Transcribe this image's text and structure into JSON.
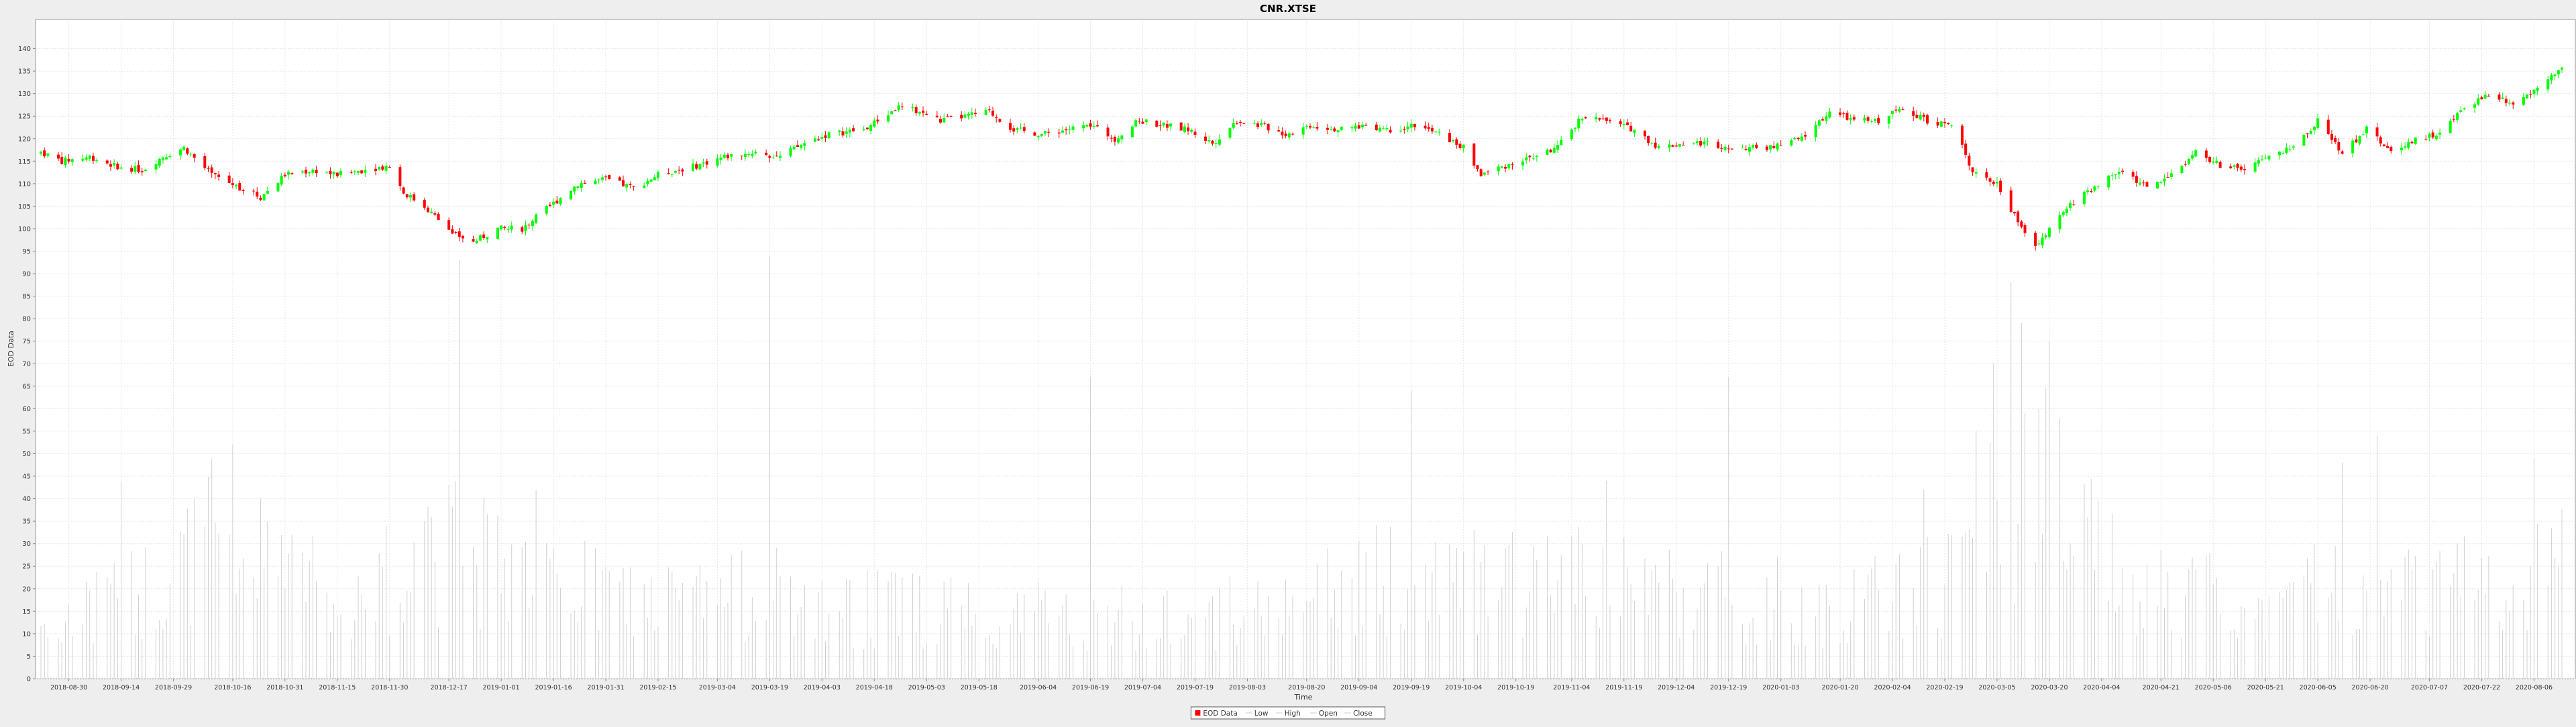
{
  "chart_data": {
    "type": "candlestick",
    "title": "CNR.XTSE",
    "xlabel": "Time",
    "ylabel": "EOD Data",
    "ylim": [
      0,
      145
    ],
    "yticks": [
      0,
      5,
      10,
      15,
      20,
      25,
      30,
      35,
      40,
      45,
      50,
      55,
      60,
      65,
      70,
      75,
      80,
      85,
      90,
      95,
      100,
      105,
      110,
      115,
      120,
      125,
      130,
      135,
      140
    ],
    "xlim": [
      "2018-08-22",
      "2020-08-14"
    ],
    "xticks": [
      "2018-08-30",
      "2018-09-14",
      "2018-09-29",
      "2018-10-16",
      "2018-10-31",
      "2018-11-15",
      "2018-11-30",
      "2018-12-17",
      "2019-01-01",
      "2019-01-16",
      "2019-01-31",
      "2019-02-15",
      "2019-03-04",
      "2019-03-19",
      "2019-04-03",
      "2019-04-18",
      "2019-05-03",
      "2019-05-18",
      "2019-06-04",
      "2019-06-19",
      "2019-07-04",
      "2019-07-19",
      "2019-08-03",
      "2019-08-20",
      "2019-09-04",
      "2019-09-19",
      "2019-10-04",
      "2019-10-19",
      "2019-11-04",
      "2019-11-19",
      "2019-12-04",
      "2019-12-19",
      "2020-01-03",
      "2020-01-20",
      "2020-02-04",
      "2020-02-19",
      "2020-03-05",
      "2020-03-20",
      "2020-04-04",
      "2020-04-21",
      "2020-05-06",
      "2020-05-21",
      "2020-06-05",
      "2020-06-20",
      "2020-07-07",
      "2020-07-22",
      "2020-08-06"
    ],
    "grid": true,
    "legend": {
      "placement": "bottom-center",
      "entries": [
        {
          "label": "EOD Data",
          "color": "#ff0000"
        },
        {
          "label": "Low",
          "color": "#cccccc"
        },
        {
          "label": "High",
          "color": "#cccccc"
        },
        {
          "label": "Open",
          "color": "#cccccc"
        },
        {
          "label": "Close",
          "color": "#cccccc"
        }
      ]
    },
    "colors": {
      "up": "#00ff00",
      "down": "#ff0000",
      "volume": "#d0d0d0",
      "grid": "#e6e6e6"
    },
    "close_anchors": [
      [
        "2018-08-22",
        117
      ],
      [
        "2018-08-28",
        115
      ],
      [
        "2018-09-05",
        116
      ],
      [
        "2018-09-12",
        114
      ],
      [
        "2018-09-20",
        113
      ],
      [
        "2018-09-26",
        116
      ],
      [
        "2018-10-02",
        118
      ],
      [
        "2018-10-10",
        112
      ],
      [
        "2018-10-24",
        107
      ],
      [
        "2018-10-31",
        112
      ],
      [
        "2018-11-08",
        113
      ],
      [
        "2018-11-15",
        112
      ],
      [
        "2018-11-22",
        113
      ],
      [
        "2018-11-30",
        114
      ],
      [
        "2018-12-04",
        108
      ],
      [
        "2018-12-10",
        105
      ],
      [
        "2018-12-18",
        99
      ],
      [
        "2018-12-24",
        97
      ],
      [
        "2018-12-31",
        100
      ],
      [
        "2019-01-07",
        100
      ],
      [
        "2019-01-15",
        105
      ],
      [
        "2019-01-23",
        110
      ],
      [
        "2019-01-31",
        111
      ],
      [
        "2019-02-08",
        109
      ],
      [
        "2019-02-15",
        112
      ],
      [
        "2019-02-26",
        114
      ],
      [
        "2019-03-06",
        116
      ],
      [
        "2019-03-15",
        117
      ],
      [
        "2019-03-22",
        116
      ],
      [
        "2019-03-29",
        119
      ],
      [
        "2019-04-05",
        121
      ],
      [
        "2019-04-15",
        122
      ],
      [
        "2019-04-25",
        127
      ],
      [
        "2019-05-01",
        126
      ],
      [
        "2019-05-07",
        124
      ],
      [
        "2019-05-14",
        125
      ],
      [
        "2019-05-21",
        126
      ],
      [
        "2019-05-28",
        122
      ],
      [
        "2019-06-05",
        121
      ],
      [
        "2019-06-12",
        122
      ],
      [
        "2019-06-19",
        123
      ],
      [
        "2019-06-26",
        120
      ],
      [
        "2019-07-03",
        124
      ],
      [
        "2019-07-10",
        123
      ],
      [
        "2019-07-17",
        122
      ],
      [
        "2019-07-24",
        119
      ],
      [
        "2019-07-31",
        124
      ],
      [
        "2019-08-07",
        123
      ],
      [
        "2019-08-14",
        121
      ],
      [
        "2019-08-21",
        123
      ],
      [
        "2019-08-30",
        122
      ],
      [
        "2019-09-06",
        123
      ],
      [
        "2019-09-13",
        122
      ],
      [
        "2019-09-20",
        123
      ],
      [
        "2019-09-27",
        121
      ],
      [
        "2019-10-04",
        118
      ],
      [
        "2019-10-09",
        112
      ],
      [
        "2019-10-16",
        114
      ],
      [
        "2019-10-24",
        116
      ],
      [
        "2019-10-31",
        118
      ],
      [
        "2019-11-07",
        125
      ],
      [
        "2019-11-14",
        124
      ],
      [
        "2019-11-22",
        122
      ],
      [
        "2019-11-29",
        118
      ],
      [
        "2019-12-06",
        119
      ],
      [
        "2019-12-13",
        119
      ],
      [
        "2019-12-20",
        118
      ],
      [
        "2019-12-31",
        118
      ],
      [
        "2020-01-09",
        120
      ],
      [
        "2020-01-17",
        126
      ],
      [
        "2020-01-24",
        124
      ],
      [
        "2020-01-31",
        124
      ],
      [
        "2020-02-07",
        127
      ],
      [
        "2020-02-14",
        124
      ],
      [
        "2020-02-21",
        123
      ],
      [
        "2020-02-27",
        113
      ],
      [
        "2020-03-05",
        110
      ],
      [
        "2020-03-12",
        100
      ],
      [
        "2020-03-16",
        96
      ],
      [
        "2020-03-20",
        100
      ],
      [
        "2020-03-27",
        106
      ],
      [
        "2020-04-03",
        110
      ],
      [
        "2020-04-10",
        113
      ],
      [
        "2020-04-17",
        109
      ],
      [
        "2020-04-24",
        112
      ],
      [
        "2020-05-01",
        117
      ],
      [
        "2020-05-08",
        114
      ],
      [
        "2020-05-15",
        113
      ],
      [
        "2020-05-22",
        116
      ],
      [
        "2020-05-29",
        118
      ],
      [
        "2020-06-05",
        124
      ],
      [
        "2020-06-12",
        117
      ],
      [
        "2020-06-19",
        122
      ],
      [
        "2020-06-26",
        117
      ],
      [
        "2020-07-03",
        120
      ],
      [
        "2020-07-10",
        121
      ],
      [
        "2020-07-17",
        127
      ],
      [
        "2020-07-24",
        130
      ],
      [
        "2020-07-31",
        128
      ],
      [
        "2020-08-07",
        131
      ],
      [
        "2020-08-14",
        136
      ]
    ],
    "volume_anchors": [
      [
        "2018-08-22",
        14
      ],
      [
        "2018-09-14",
        20
      ],
      [
        "2018-10-16",
        38
      ],
      [
        "2018-11-15",
        20
      ],
      [
        "2018-12-17",
        34
      ],
      [
        "2019-01-16",
        25
      ],
      [
        "2019-02-15",
        20
      ],
      [
        "2019-03-19",
        22
      ],
      [
        "2019-04-18",
        18
      ],
      [
        "2019-05-18",
        19
      ],
      [
        "2019-06-19",
        16
      ],
      [
        "2019-07-19",
        17
      ],
      [
        "2019-08-20",
        20
      ],
      [
        "2019-09-19",
        28
      ],
      [
        "2019-10-19",
        24
      ],
      [
        "2019-11-19",
        26
      ],
      [
        "2019-12-19",
        22
      ],
      [
        "2020-01-20",
        19
      ],
      [
        "2020-02-19",
        25
      ],
      [
        "2020-03-05",
        45
      ],
      [
        "2020-03-20",
        48
      ],
      [
        "2020-04-04",
        30
      ],
      [
        "2020-04-21",
        22
      ],
      [
        "2020-05-21",
        20
      ],
      [
        "2020-06-20",
        28
      ],
      [
        "2020-07-22",
        25
      ],
      [
        "2020-08-14",
        30
      ]
    ],
    "volume_spikes": [
      [
        "2018-09-14",
        44
      ],
      [
        "2018-10-10",
        49
      ],
      [
        "2018-10-16",
        52
      ],
      [
        "2018-10-24",
        40
      ],
      [
        "2018-12-17",
        43
      ],
      [
        "2018-12-20",
        93
      ],
      [
        "2019-01-11",
        42
      ],
      [
        "2019-03-19",
        94
      ],
      [
        "2019-06-19",
        67
      ],
      [
        "2019-09-19",
        64
      ],
      [
        "2019-11-14",
        44
      ],
      [
        "2019-12-19",
        67
      ],
      [
        "2020-02-13",
        42
      ],
      [
        "2020-02-28",
        55
      ],
      [
        "2020-03-04",
        70
      ],
      [
        "2020-03-09",
        88
      ],
      [
        "2020-03-12",
        79
      ],
      [
        "2020-03-17",
        60
      ],
      [
        "2020-03-20",
        75
      ],
      [
        "2020-06-12",
        48
      ],
      [
        "2020-06-22",
        54
      ],
      [
        "2020-08-06",
        49
      ]
    ]
  }
}
